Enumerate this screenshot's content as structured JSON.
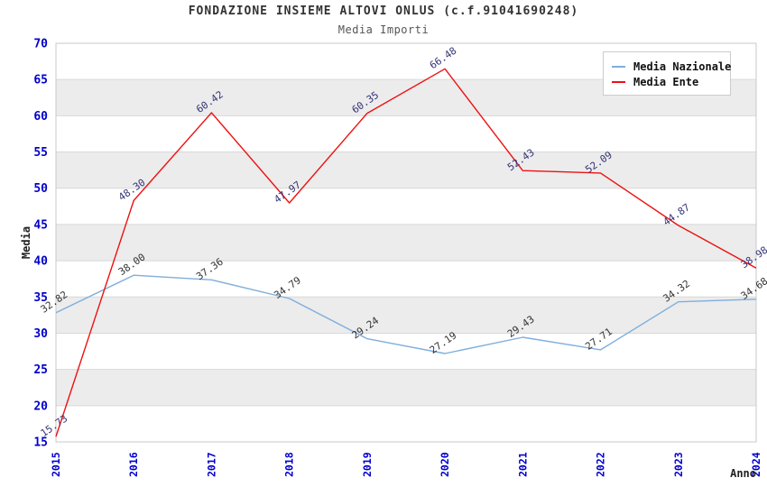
{
  "chart_data": {
    "type": "line",
    "title": "FONDAZIONE INSIEME ALTOVI ONLUS (c.f.91041690248)",
    "subtitle": "Media Importi",
    "xlabel": "Anno",
    "ylabel": "Media",
    "categories": [
      "2015",
      "2016",
      "2017",
      "2018",
      "2019",
      "2020",
      "2021",
      "2022",
      "2023",
      "2024"
    ],
    "series": [
      {
        "name": "Media Nazionale",
        "color": "#7FAEDC",
        "label_color": "#333333",
        "values": [
          32.82,
          38.0,
          37.36,
          34.79,
          29.24,
          27.19,
          29.43,
          27.71,
          34.32,
          34.68
        ]
      },
      {
        "name": "Media Ente",
        "color": "#EE1111",
        "label_color": "#333377",
        "values": [
          15.73,
          48.3,
          60.42,
          47.97,
          60.35,
          66.48,
          52.43,
          52.09,
          44.87,
          38.98
        ]
      }
    ],
    "ylim": [
      15,
      70
    ],
    "ytick_step": 5,
    "tick_label_color": "#0000CC",
    "axis_title_color": "#222222",
    "band_color": "#ECECEC",
    "gridline_color": "#D8D8D8",
    "plot_border_color": "#C9C9C9",
    "grid": true,
    "legend_position": "top-right"
  }
}
